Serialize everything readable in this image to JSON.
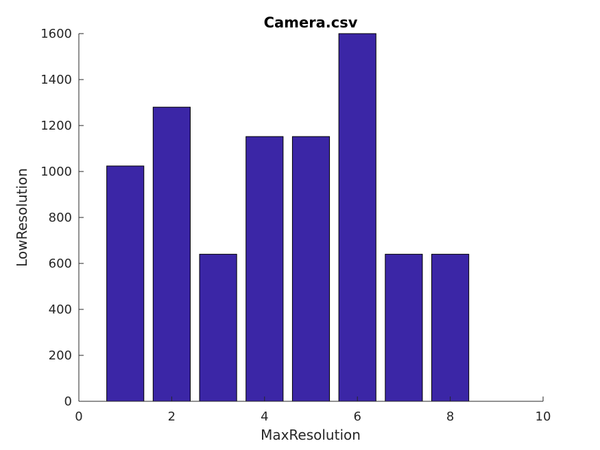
{
  "chart_data": {
    "type": "bar",
    "title": "Camera.csv",
    "xlabel": "MaxResolution",
    "ylabel": "LowResolution",
    "x": [
      1,
      2,
      3,
      4,
      5,
      6,
      7,
      8
    ],
    "values": [
      1024,
      1280,
      640,
      1152,
      1152,
      1600,
      640,
      640
    ],
    "xlim": [
      0,
      10
    ],
    "ylim": [
      0,
      1600
    ],
    "xticks": [
      0,
      2,
      4,
      6,
      8,
      10
    ],
    "yticks": [
      0,
      200,
      400,
      600,
      800,
      1000,
      1200,
      1400,
      1600
    ],
    "bar_color": "#3b26a6",
    "grid": false,
    "legend": "none"
  }
}
